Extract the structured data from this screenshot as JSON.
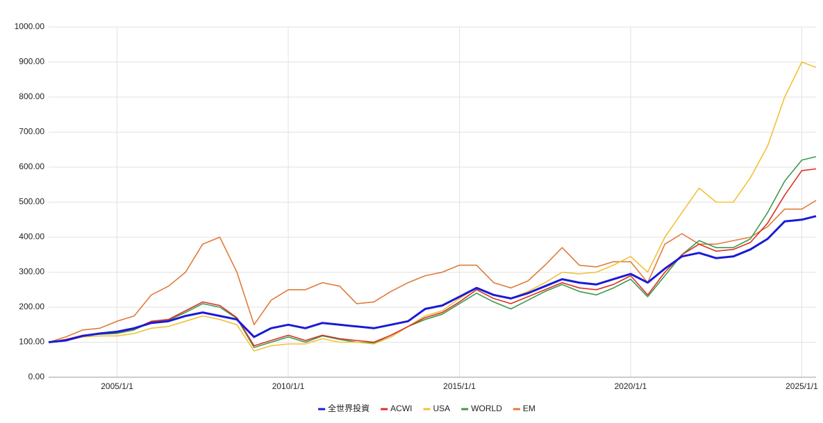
{
  "chart_data": {
    "type": "line",
    "x": [
      "2003/1/1",
      "2003/7/1",
      "2004/1/1",
      "2004/7/1",
      "2005/1/1",
      "2005/7/1",
      "2006/1/1",
      "2006/7/1",
      "2007/1/1",
      "2007/7/1",
      "2008/1/1",
      "2008/7/1",
      "2009/1/1",
      "2009/7/1",
      "2010/1/1",
      "2010/7/1",
      "2011/1/1",
      "2011/7/1",
      "2012/1/1",
      "2012/7/1",
      "2013/1/1",
      "2013/7/1",
      "2014/1/1",
      "2014/7/1",
      "2015/1/1",
      "2015/7/1",
      "2016/1/1",
      "2016/7/1",
      "2017/1/1",
      "2017/7/1",
      "2018/1/1",
      "2018/7/1",
      "2019/1/1",
      "2019/7/1",
      "2020/1/1",
      "2020/7/1",
      "2021/1/1",
      "2021/7/1",
      "2022/1/1",
      "2022/7/1",
      "2023/1/1",
      "2023/7/1",
      "2024/1/1",
      "2024/7/1",
      "2025/1/1",
      "2025/6/1"
    ],
    "series": [
      {
        "name": "全世界投資",
        "color": "#1a1ad6",
        "values": [
          100,
          105,
          118,
          125,
          130,
          140,
          155,
          160,
          175,
          185,
          175,
          165,
          115,
          140,
          150,
          140,
          155,
          150,
          145,
          140,
          150,
          160,
          195,
          205,
          230,
          255,
          235,
          225,
          240,
          260,
          280,
          270,
          265,
          280,
          295,
          270,
          310,
          345,
          355,
          340,
          345,
          365,
          395,
          445,
          450,
          460
        ]
      },
      {
        "name": "ACWI",
        "color": "#d93025",
        "values": [
          100,
          108,
          120,
          125,
          128,
          138,
          160,
          165,
          190,
          215,
          205,
          170,
          90,
          105,
          120,
          105,
          120,
          110,
          105,
          100,
          120,
          145,
          170,
          185,
          215,
          250,
          225,
          210,
          230,
          250,
          270,
          255,
          250,
          265,
          290,
          235,
          300,
          350,
          380,
          360,
          365,
          385,
          440,
          520,
          590,
          595
        ]
      },
      {
        "name": "USA",
        "color": "#f2c037",
        "values": [
          100,
          105,
          115,
          118,
          118,
          125,
          140,
          145,
          160,
          175,
          165,
          150,
          75,
          90,
          95,
          95,
          110,
          100,
          100,
          95,
          115,
          145,
          175,
          190,
          225,
          255,
          235,
          225,
          245,
          270,
          300,
          295,
          300,
          320,
          345,
          300,
          400,
          470,
          540,
          500,
          500,
          570,
          660,
          800,
          900,
          885
        ]
      },
      {
        "name": "WORLD",
        "color": "#3a9a4b",
        "values": [
          100,
          108,
          118,
          123,
          125,
          135,
          158,
          163,
          185,
          210,
          200,
          168,
          85,
          100,
          115,
          100,
          118,
          108,
          100,
          98,
          115,
          145,
          165,
          180,
          210,
          240,
          215,
          195,
          220,
          245,
          265,
          245,
          235,
          255,
          280,
          230,
          290,
          350,
          390,
          370,
          370,
          395,
          470,
          560,
          620,
          630
        ]
      },
      {
        "name": "EM",
        "color": "#e07a3a",
        "values": [
          100,
          115,
          135,
          140,
          160,
          175,
          235,
          260,
          300,
          380,
          400,
          300,
          150,
          220,
          250,
          250,
          270,
          260,
          210,
          215,
          245,
          270,
          290,
          300,
          320,
          320,
          270,
          255,
          275,
          320,
          370,
          320,
          315,
          330,
          330,
          270,
          380,
          410,
          380,
          380,
          390,
          400,
          430,
          480,
          480,
          505
        ]
      }
    ],
    "xlim": [
      "2003/1/1",
      "2025/6/1"
    ],
    "xticks": [
      "2005/1/1",
      "2010/1/1",
      "2015/1/1",
      "2020/1/1",
      "2025/1/1"
    ],
    "ylim": [
      0,
      1000
    ],
    "yticks": [
      {
        "value": 0,
        "label": "0.00"
      },
      {
        "value": 100,
        "label": "100.00"
      },
      {
        "value": 200,
        "label": "200.00"
      },
      {
        "value": 300,
        "label": "300.00"
      },
      {
        "value": 400,
        "label": "400.00"
      },
      {
        "value": 500,
        "label": "500.00"
      },
      {
        "value": 600,
        "label": "600.00"
      },
      {
        "value": 700,
        "label": "700.00"
      },
      {
        "value": 800,
        "label": "800.00"
      },
      {
        "value": 900,
        "label": "900.00"
      },
      {
        "value": 1000,
        "label": "1000.00"
      }
    ],
    "grid": true,
    "legend": "bottom"
  }
}
